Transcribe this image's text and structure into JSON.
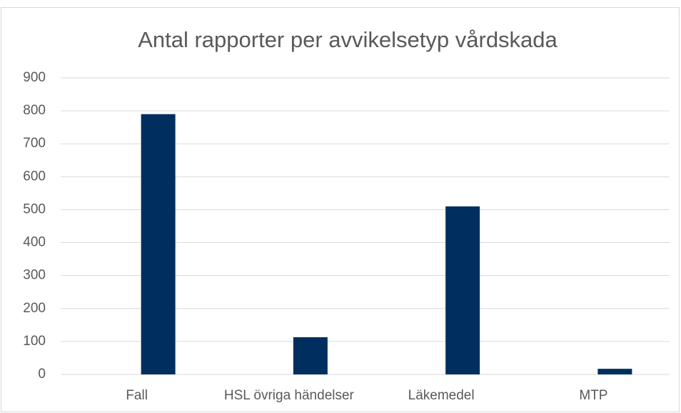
{
  "chart_data": {
    "type": "bar",
    "title": "Antal rapporter per avvikelsetyp vårdskada",
    "categories": [
      "Fall",
      "HSL övriga händelser",
      "Läkemedel",
      "MTP"
    ],
    "values": [
      790,
      113,
      510,
      17
    ],
    "color": "#002f5f",
    "ylim": [
      0,
      900
    ],
    "yticks": [
      0,
      100,
      200,
      300,
      400,
      500,
      600,
      700,
      800,
      900
    ],
    "grid": true
  }
}
